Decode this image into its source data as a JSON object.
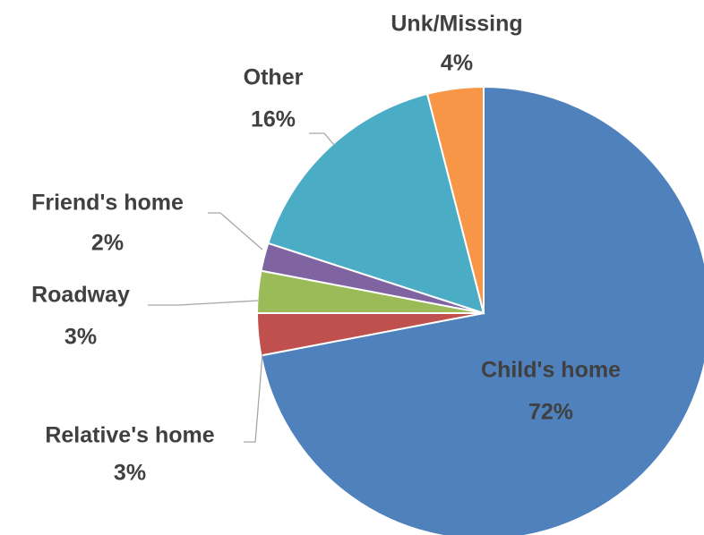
{
  "chart_data": {
    "type": "pie",
    "categories": [
      "Child's home",
      "Relative's home",
      "Roadway",
      "Friend's home",
      "Other",
      "Unk/Missing"
    ],
    "values": [
      72,
      3,
      3,
      2,
      16,
      4
    ],
    "value_labels": [
      "72%",
      "3%",
      "3%",
      "2%",
      "16%",
      "4%"
    ],
    "colors": [
      "#4f81bd",
      "#c0504d",
      "#9bbb59",
      "#8064a2",
      "#4bacc6",
      "#f79646"
    ]
  }
}
